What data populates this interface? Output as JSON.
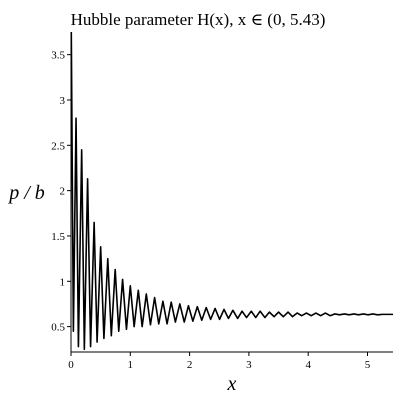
{
  "chart_data": {
    "type": "line",
    "title": "Hubble parameter H(x), x ∈ (0, 5.43)",
    "xlabel": "x",
    "ylabel": "p / b",
    "xlim": [
      0,
      5.43
    ],
    "ylim": [
      0.22,
      3.75
    ],
    "x_ticks": [
      {
        "value": 0,
        "label": "0"
      },
      {
        "value": 1,
        "label": "1"
      },
      {
        "value": 2,
        "label": "2"
      },
      {
        "value": 3,
        "label": "3"
      },
      {
        "value": 4,
        "label": "4"
      },
      {
        "value": 5,
        "label": "5"
      }
    ],
    "y_ticks": [
      {
        "value": 0.5,
        "label": "0.5"
      },
      {
        "value": 1,
        "label": "1"
      },
      {
        "value": 1.5,
        "label": "1.5"
      },
      {
        "value": 2,
        "label": "2"
      },
      {
        "value": 2.5,
        "label": "2.5"
      },
      {
        "value": 3,
        "label": "3"
      },
      {
        "value": 3.5,
        "label": "3.5"
      }
    ],
    "grid": false,
    "legend": "none",
    "line_color": "#000000",
    "series": [
      {
        "x": [
          0.005,
          0.04,
          0.085,
          0.125,
          0.18,
          0.225,
          0.28,
          0.33,
          0.39,
          0.44,
          0.5,
          0.555,
          0.62,
          0.68,
          0.745,
          0.805,
          0.87,
          0.935,
          1.0,
          1.065,
          1.135,
          1.2,
          1.27,
          1.34,
          1.41,
          1.48,
          1.55,
          1.62,
          1.69,
          1.76,
          1.835,
          1.91,
          1.98,
          2.055,
          2.13,
          2.205,
          2.28,
          2.355,
          2.43,
          2.505,
          2.58,
          2.655,
          2.73,
          2.81,
          2.885,
          2.96,
          3.04,
          3.115,
          3.19,
          3.27,
          3.345,
          3.425,
          3.5,
          3.58,
          3.66,
          3.735,
          3.815,
          3.89,
          3.97,
          4.05,
          4.13,
          4.21,
          4.29,
          4.37,
          4.45,
          4.53,
          4.61,
          4.69,
          4.77,
          4.85,
          4.93,
          5.01,
          5.09,
          5.17,
          5.25,
          5.33,
          5.43
        ],
        "y": [
          3.75,
          0.45,
          2.8,
          0.28,
          2.45,
          0.25,
          2.13,
          0.28,
          1.65,
          0.33,
          1.38,
          0.37,
          1.25,
          0.4,
          1.13,
          0.45,
          1.02,
          0.47,
          0.95,
          0.5,
          0.9,
          0.5,
          0.86,
          0.52,
          0.82,
          0.53,
          0.78,
          0.53,
          0.77,
          0.55,
          0.75,
          0.55,
          0.73,
          0.56,
          0.72,
          0.57,
          0.71,
          0.58,
          0.7,
          0.58,
          0.69,
          0.59,
          0.68,
          0.59,
          0.67,
          0.6,
          0.67,
          0.6,
          0.67,
          0.6,
          0.66,
          0.61,
          0.66,
          0.61,
          0.66,
          0.61,
          0.65,
          0.62,
          0.65,
          0.62,
          0.65,
          0.62,
          0.65,
          0.62,
          0.64,
          0.63,
          0.64,
          0.63,
          0.64,
          0.63,
          0.64,
          0.63,
          0.64,
          0.63,
          0.635,
          0.635,
          0.635
        ]
      }
    ]
  }
}
